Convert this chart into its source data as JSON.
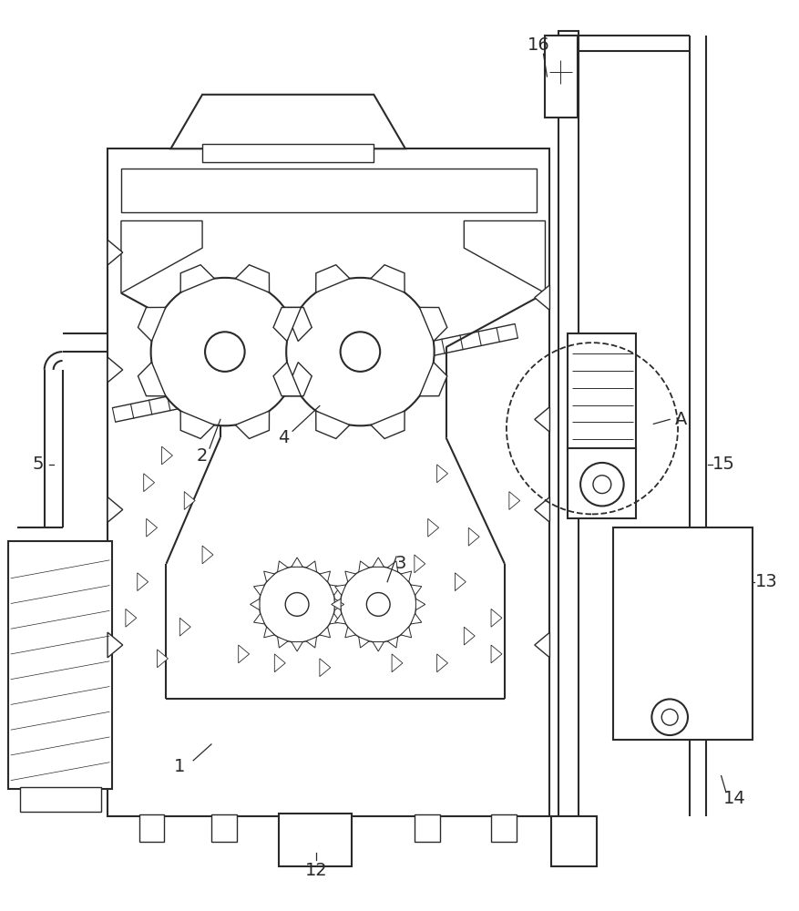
{
  "bg_color": "#ffffff",
  "line_color": "#2a2a2a",
  "lw_main": 1.5,
  "lw_thin": 1.0,
  "lw_hair": 0.7,
  "fig_width": 8.78,
  "fig_height": 10.0
}
